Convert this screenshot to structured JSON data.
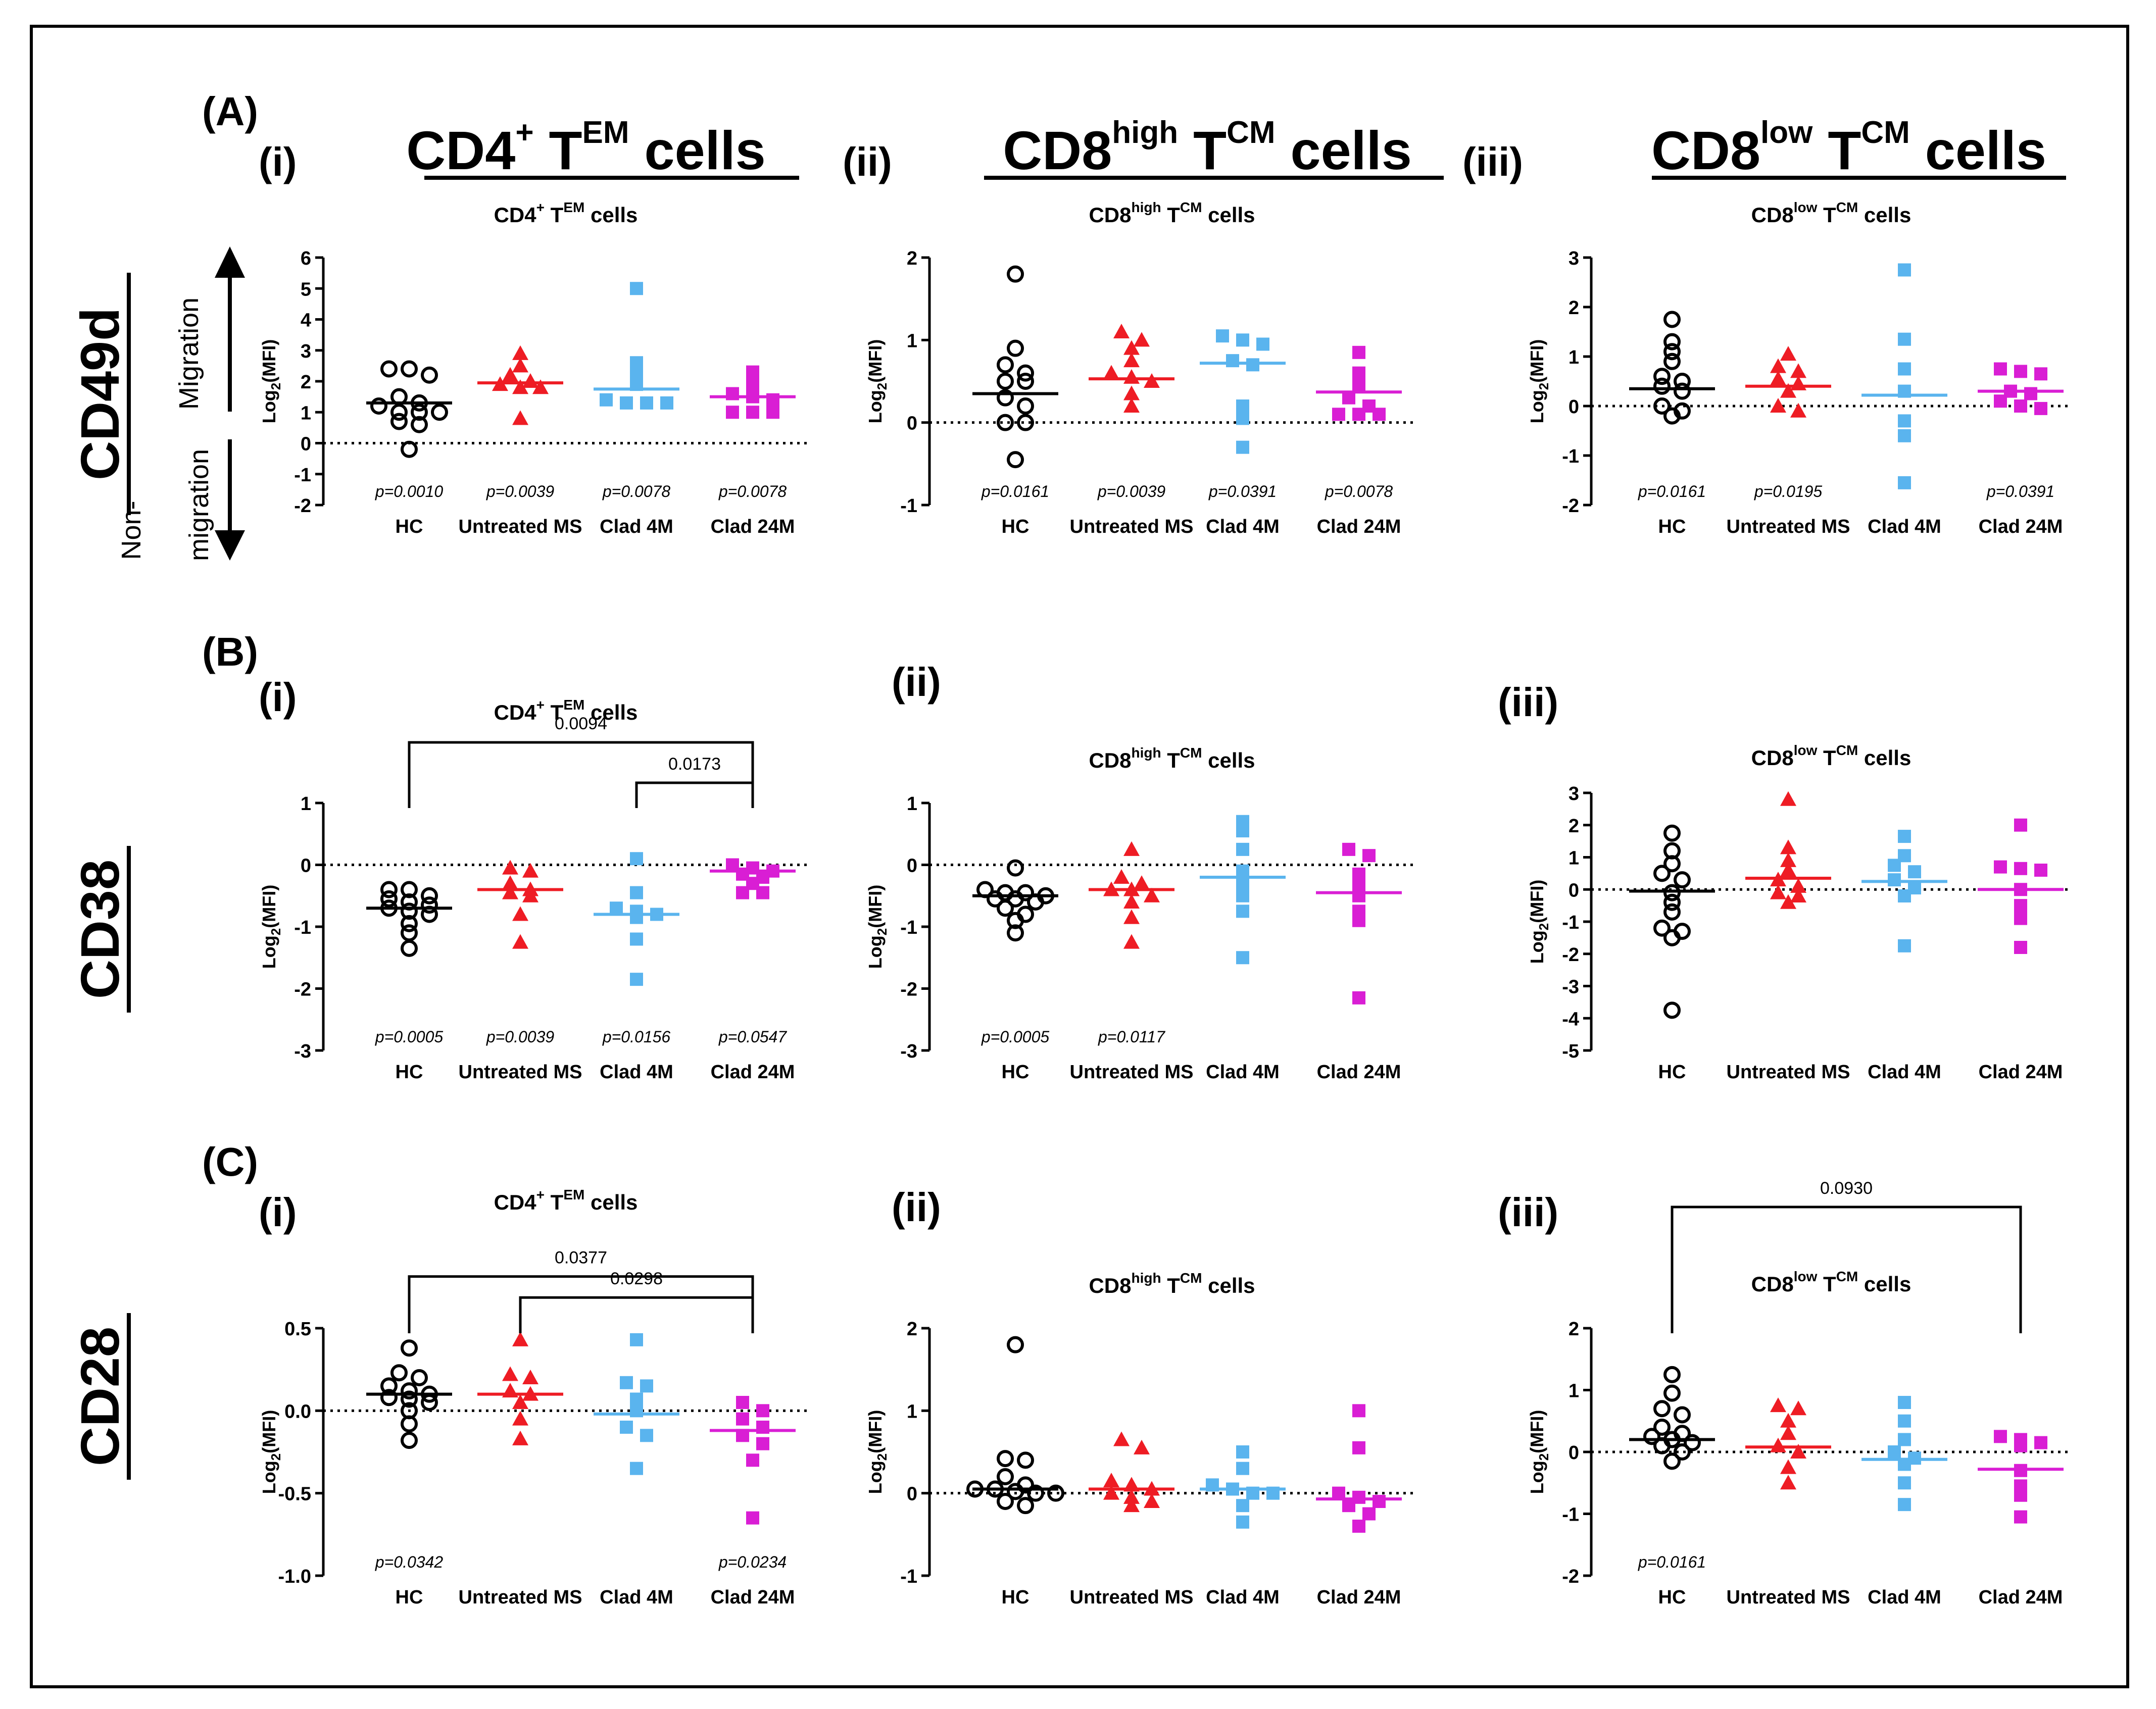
{
  "figure": {
    "panel_letters": [
      "(A)",
      "(B)",
      "(C)"
    ],
    "roman": [
      "(i)",
      "(ii)",
      "(iii)"
    ],
    "row_markers": [
      "CD49d",
      "CD38",
      "CD28"
    ],
    "column_headers": [
      {
        "main": "CD4",
        "sup1": "+",
        "mid": " T",
        "sup2": "EM",
        "tail": " cells"
      },
      {
        "main": "CD8",
        "sup1": "high",
        "mid": " T",
        "sup2": "CM",
        "tail": " cells"
      },
      {
        "main": "CD8",
        "sup1": "low",
        "mid": " T",
        "sup2": "CM",
        "tail": " cells"
      }
    ],
    "migration": {
      "up": "Migration",
      "down_line1": "Non-",
      "down_line2": "migration"
    },
    "ylabel_base": "Log",
    "ylabel_sub": "2",
    "ylabel_tail": "(MFI)",
    "categories": [
      "HC",
      "Untreated MS",
      "Clad 4M",
      "Clad 24M"
    ],
    "colors": {
      "hc": "#000000",
      "untreated": "#ee1c24",
      "clad4": "#5ab4ee",
      "clad24": "#d91ed4"
    }
  },
  "chart_data": [
    {
      "id": "A-i",
      "type": "scatter",
      "row": 0,
      "col": 0,
      "title": {
        "main": "CD4",
        "sup1": "+",
        "mid": " T",
        "sup2": "EM",
        "tail": " cells"
      },
      "ylim": [
        -2,
        6
      ],
      "yticks": [
        -2,
        -1,
        0,
        1,
        2,
        3,
        4,
        5,
        6
      ],
      "series": [
        {
          "name": "HC",
          "values": [
            2.4,
            2.4,
            2.2,
            1.5,
            1.3,
            1.2,
            1.0,
            1.0,
            1.0,
            0.7,
            0.6,
            -0.2
          ],
          "median": 1.3
        },
        {
          "name": "Untreated MS",
          "values": [
            2.9,
            2.5,
            2.2,
            2.0,
            1.8,
            1.9,
            1.8,
            0.8
          ],
          "median": 1.95
        },
        {
          "name": "Clad 4M",
          "values": [
            5.0,
            2.6,
            2.2,
            1.9,
            1.3,
            1.3,
            1.3,
            1.4
          ],
          "median": 1.75
        },
        {
          "name": "Clad 24M",
          "values": [
            2.3,
            1.9,
            1.6,
            1.5,
            1.4,
            1.0,
            1.0,
            1.0
          ],
          "median": 1.5
        }
      ],
      "pvalues": [
        "p=0.0010",
        "p=0.0039",
        "p=0.0078",
        "p=0.0078"
      ],
      "brackets": []
    },
    {
      "id": "A-ii",
      "type": "scatter",
      "row": 0,
      "col": 1,
      "title": {
        "main": "CD8",
        "sup1": "high",
        "mid": " T",
        "sup2": "CM",
        "tail": " cells"
      },
      "ylim": [
        -1,
        2
      ],
      "yticks": [
        -1,
        0,
        1,
        2
      ],
      "series": [
        {
          "name": "HC",
          "values": [
            1.8,
            0.9,
            0.7,
            0.6,
            0.5,
            0.5,
            0.3,
            0.2,
            0.0,
            0.0,
            -0.45
          ],
          "median": 0.35
        },
        {
          "name": "Untreated MS",
          "values": [
            1.1,
            1.0,
            0.9,
            0.75,
            0.6,
            0.55,
            0.5,
            0.35,
            0.2
          ],
          "median": 0.53
        },
        {
          "name": "Clad 4M",
          "values": [
            1.05,
            1.0,
            0.95,
            0.75,
            0.7,
            0.2,
            0.05,
            -0.3
          ],
          "median": 0.72
        },
        {
          "name": "Clad 24M",
          "values": [
            0.85,
            0.6,
            0.45,
            0.3,
            0.2,
            0.1,
            0.1,
            0.1
          ],
          "median": 0.37
        }
      ],
      "pvalues": [
        "p=0.0161",
        "p=0.0039",
        "p=0.0391",
        "p=0.0078"
      ],
      "brackets": []
    },
    {
      "id": "A-iii",
      "type": "scatter",
      "row": 0,
      "col": 2,
      "title": {
        "main": "CD8",
        "sup1": "low",
        "mid": " T",
        "sup2": "CM",
        "tail": " cells"
      },
      "ylim": [
        -2,
        3
      ],
      "yticks": [
        -2,
        -1,
        0,
        1,
        2,
        3
      ],
      "series": [
        {
          "name": "HC",
          "values": [
            1.75,
            1.3,
            1.1,
            0.9,
            0.6,
            0.5,
            0.4,
            0.3,
            0.0,
            -0.1,
            -0.2
          ],
          "median": 0.35
        },
        {
          "name": "Untreated MS",
          "values": [
            1.05,
            0.8,
            0.7,
            0.55,
            0.45,
            0.3,
            0.0,
            -0.1
          ],
          "median": 0.4
        },
        {
          "name": "Clad 4M",
          "values": [
            2.75,
            1.35,
            0.75,
            0.3,
            -0.3,
            -0.6,
            -1.55
          ],
          "median": 0.22
        },
        {
          "name": "Clad 24M",
          "values": [
            0.75,
            0.7,
            0.65,
            0.3,
            0.25,
            0.1,
            0.0,
            -0.05
          ],
          "median": 0.3
        }
      ],
      "pvalues": [
        "p=0.0161",
        "p=0.0195",
        "",
        "p=0.0391"
      ],
      "brackets": []
    },
    {
      "id": "B-i",
      "type": "scatter",
      "row": 1,
      "col": 0,
      "title": {
        "main": "CD4",
        "sup1": "+",
        "mid": " T",
        "sup2": "EM",
        "tail": " cells"
      },
      "ylim": [
        -3,
        1
      ],
      "yticks": [
        -3,
        -2,
        -1,
        0,
        1
      ],
      "series": [
        {
          "name": "HC",
          "values": [
            -0.4,
            -0.4,
            -0.5,
            -0.55,
            -0.6,
            -0.65,
            -0.7,
            -0.75,
            -0.8,
            -0.95,
            -1.1,
            -1.35
          ],
          "median": -0.7
        },
        {
          "name": "Untreated MS",
          "values": [
            -0.05,
            -0.1,
            -0.3,
            -0.4,
            -0.45,
            -0.5,
            -0.8,
            -1.25
          ],
          "median": -0.4
        },
        {
          "name": "Clad 4M",
          "values": [
            0.1,
            -0.45,
            -0.7,
            -0.75,
            -0.8,
            -0.85,
            -1.2,
            -1.85
          ],
          "median": -0.8
        },
        {
          "name": "Clad 24M",
          "values": [
            0.0,
            -0.05,
            -0.1,
            -0.15,
            -0.2,
            -0.3,
            -0.45,
            -0.45
          ],
          "median": -0.1
        }
      ],
      "pvalues": [
        "p=0.0005",
        "p=0.0039",
        "p=0.0156",
        "p=0.0547"
      ],
      "brackets": [
        {
          "from": 0,
          "to": 3,
          "label": "0.0094",
          "y": 1.0
        },
        {
          "from": 2,
          "to": 3,
          "label": "0.0173",
          "y": 0.5
        }
      ]
    },
    {
      "id": "B-ii",
      "type": "scatter",
      "row": 1,
      "col": 1,
      "title": {
        "main": "CD8",
        "sup1": "high",
        "mid": " T",
        "sup2": "CM",
        "tail": " cells"
      },
      "ylim": [
        -3,
        1
      ],
      "yticks": [
        -3,
        -2,
        -1,
        0,
        1
      ],
      "series": [
        {
          "name": "HC",
          "values": [
            -0.05,
            -0.4,
            -0.45,
            -0.45,
            -0.5,
            -0.55,
            -0.55,
            -0.6,
            -0.7,
            -0.8,
            -0.9,
            -1.1
          ],
          "median": -0.5
        },
        {
          "name": "Untreated MS",
          "values": [
            0.25,
            -0.2,
            -0.3,
            -0.4,
            -0.4,
            -0.5,
            -0.6,
            -0.85,
            -1.25
          ],
          "median": -0.4
        },
        {
          "name": "Clad 4M",
          "values": [
            0.7,
            0.55,
            0.25,
            -0.1,
            -0.3,
            -0.5,
            -0.75,
            -1.5
          ],
          "median": -0.2
        },
        {
          "name": "Clad 24M",
          "values": [
            0.25,
            0.15,
            -0.15,
            -0.3,
            -0.5,
            -0.75,
            -0.9,
            -2.15
          ],
          "median": -0.45
        }
      ],
      "pvalues": [
        "p=0.0005",
        "p=0.0117",
        "",
        ""
      ],
      "brackets": []
    },
    {
      "id": "B-iii",
      "type": "scatter",
      "row": 1,
      "col": 2,
      "title": {
        "main": "CD8",
        "sup1": "low",
        "mid": " T",
        "sup2": "CM",
        "tail": " cells"
      },
      "ylim": [
        -5,
        3
      ],
      "yticks": [
        -5,
        -4,
        -3,
        -2,
        -1,
        0,
        1,
        2,
        3
      ],
      "series": [
        {
          "name": "HC",
          "values": [
            1.75,
            1.2,
            0.8,
            0.5,
            0.3,
            -0.1,
            -0.4,
            -0.7,
            -1.2,
            -1.3,
            -1.5,
            -3.75
          ],
          "median": -0.05
        },
        {
          "name": "Untreated MS",
          "values": [
            2.8,
            1.3,
            0.9,
            0.6,
            0.3,
            0.1,
            -0.1,
            -0.4,
            -0.2
          ],
          "median": 0.35
        },
        {
          "name": "Clad 4M",
          "values": [
            1.65,
            1.05,
            0.75,
            0.55,
            0.3,
            0.05,
            -0.2,
            -1.75
          ],
          "median": 0.25
        },
        {
          "name": "Clad 24M",
          "values": [
            2.0,
            0.7,
            0.65,
            0.6,
            0.0,
            -0.5,
            -0.9,
            -1.8
          ],
          "median": 0.0
        }
      ],
      "pvalues": [
        "",
        "",
        "",
        ""
      ],
      "brackets": []
    },
    {
      "id": "C-i",
      "type": "scatter",
      "row": 2,
      "col": 0,
      "title": {
        "main": "CD4",
        "sup1": "+",
        "mid": " T",
        "sup2": "EM",
        "tail": " cells"
      },
      "ylim": [
        -1,
        0.5
      ],
      "yticks": [
        -1.0,
        -0.5,
        0.0,
        0.5
      ],
      "series": [
        {
          "name": "HC",
          "values": [
            0.38,
            0.23,
            0.2,
            0.15,
            0.12,
            0.1,
            0.08,
            0.07,
            0.05,
            0.0,
            -0.08,
            -0.18
          ],
          "median": 0.1
        },
        {
          "name": "Untreated MS",
          "values": [
            0.43,
            0.22,
            0.2,
            0.12,
            0.1,
            0.05,
            -0.05,
            -0.17
          ],
          "median": 0.1
        },
        {
          "name": "Clad 4M",
          "values": [
            0.43,
            0.17,
            0.15,
            0.07,
            0.0,
            -0.1,
            -0.15,
            -0.35
          ],
          "median": -0.02
        },
        {
          "name": "Clad 24M",
          "values": [
            0.05,
            0.0,
            -0.05,
            -0.1,
            -0.15,
            -0.2,
            -0.3,
            -0.65
          ],
          "median": -0.12
        }
      ],
      "pvalues": [
        "p=0.0342",
        "",
        "",
        "p=0.0234"
      ],
      "brackets": [
        {
          "from": 0,
          "to": 3,
          "label": "0.0377",
          "y": 0.89
        },
        {
          "from": 1,
          "to": 3,
          "label": "0.0298",
          "y": 0.63
        }
      ]
    },
    {
      "id": "C-ii",
      "type": "scatter",
      "row": 2,
      "col": 1,
      "title": {
        "main": "CD8",
        "sup1": "high",
        "mid": " T",
        "sup2": "CM",
        "tail": " cells"
      },
      "ylim": [
        -1,
        2
      ],
      "yticks": [
        -1,
        0,
        1,
        2
      ],
      "series": [
        {
          "name": "HC",
          "values": [
            1.8,
            0.42,
            0.4,
            0.2,
            0.1,
            0.05,
            0.05,
            0.02,
            0.0,
            0.0,
            -0.1,
            -0.15
          ],
          "median": 0.05
        },
        {
          "name": "Untreated MS",
          "values": [
            0.65,
            0.55,
            0.15,
            0.1,
            0.05,
            0.0,
            -0.05,
            -0.1,
            -0.15
          ],
          "median": 0.05
        },
        {
          "name": "Clad 4M",
          "values": [
            0.5,
            0.3,
            0.1,
            0.05,
            0.0,
            0.0,
            -0.15,
            -0.35
          ],
          "median": 0.05
        },
        {
          "name": "Clad 24M",
          "values": [
            1.0,
            0.55,
            0.0,
            -0.05,
            -0.1,
            -0.15,
            -0.25,
            -0.4
          ],
          "median": -0.07
        }
      ],
      "pvalues": [
        "",
        "",
        "",
        ""
      ],
      "brackets": []
    },
    {
      "id": "C-iii",
      "type": "scatter",
      "row": 2,
      "col": 2,
      "title": {
        "main": "CD8",
        "sup1": "low",
        "mid": " T",
        "sup2": "CM",
        "tail": " cells"
      },
      "ylim": [
        -2,
        2
      ],
      "yticks": [
        -2,
        -1,
        0,
        1,
        2
      ],
      "series": [
        {
          "name": "HC",
          "values": [
            1.25,
            0.95,
            0.7,
            0.6,
            0.4,
            0.3,
            0.25,
            0.2,
            0.15,
            0.1,
            0.0,
            -0.15
          ],
          "median": 0.2
        },
        {
          "name": "Untreated MS",
          "values": [
            0.75,
            0.7,
            0.5,
            0.3,
            0.1,
            0.0,
            -0.25,
            -0.5
          ],
          "median": 0.08
        },
        {
          "name": "Clad 4M",
          "values": [
            0.8,
            0.5,
            0.2,
            0.0,
            -0.1,
            -0.2,
            -0.5,
            -0.85
          ],
          "median": -0.12
        },
        {
          "name": "Clad 24M",
          "values": [
            0.25,
            0.2,
            0.15,
            0.1,
            -0.3,
            -0.55,
            -0.7,
            -1.05
          ],
          "median": -0.28
        }
      ],
      "pvalues": [
        "p=0.0161",
        "",
        "",
        ""
      ],
      "brackets": [
        {
          "from": 0,
          "to": 3,
          "label": "0.0930",
          "y": 1.75
        }
      ]
    }
  ]
}
